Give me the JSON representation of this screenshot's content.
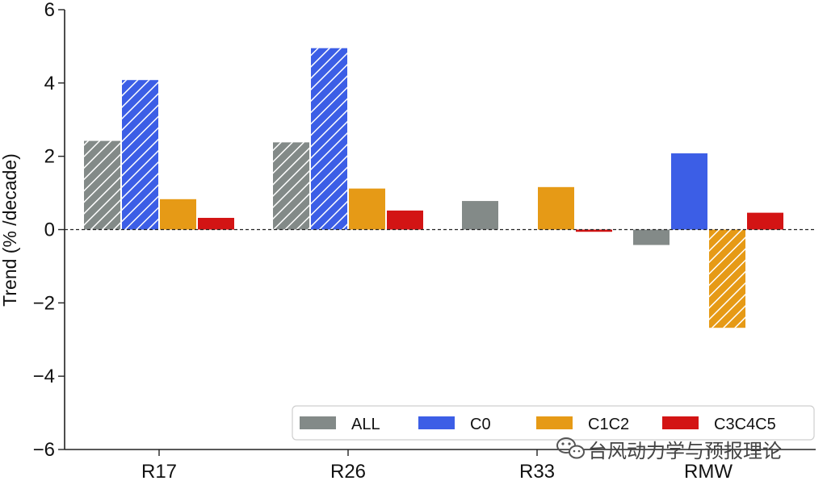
{
  "chart_data": {
    "type": "bar",
    "categories": [
      "R17",
      "R26",
      "R33",
      "RMW"
    ],
    "ylabel": "Trend (% /decade)",
    "ylim": [
      -6,
      6
    ],
    "yticks": [
      6,
      4,
      2,
      0,
      -2,
      -4,
      -6
    ],
    "ytick_labels": [
      "6",
      "4",
      "2",
      "0",
      "−2",
      "−4",
      "−6"
    ],
    "series": [
      {
        "name": "ALL",
        "color": "#838a88",
        "values": [
          2.42,
          2.38,
          0.78,
          -0.42
        ],
        "hatched": [
          true,
          true,
          false,
          false
        ]
      },
      {
        "name": "C0",
        "color": "#3c5ee6",
        "values": [
          4.08,
          4.95,
          null,
          2.08
        ],
        "hatched": [
          true,
          true,
          false,
          false
        ]
      },
      {
        "name": "C1C2",
        "color": "#e69a16",
        "values": [
          0.83,
          1.12,
          1.16,
          -2.68
        ],
        "hatched": [
          false,
          false,
          false,
          true
        ]
      },
      {
        "name": "C3C4C5",
        "color": "#d31414",
        "values": [
          0.32,
          0.52,
          -0.06,
          0.46
        ],
        "hatched": [
          false,
          false,
          false,
          false
        ]
      }
    ],
    "zero_line": "dashed",
    "legend_position": "bottom-right"
  },
  "watermark": {
    "text": "台风动力学与预报理论",
    "icon": "wechat-icon"
  }
}
